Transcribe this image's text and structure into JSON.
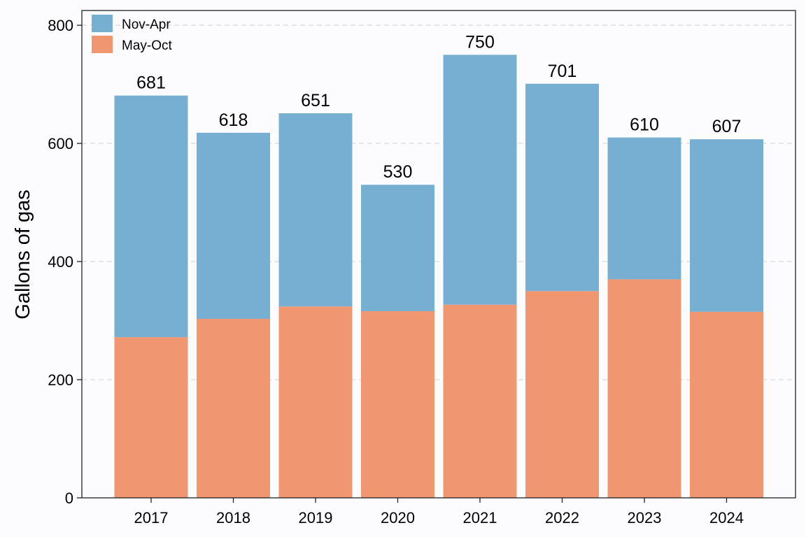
{
  "chart_data": {
    "type": "bar",
    "stacked": true,
    "categories": [
      "2017",
      "2018",
      "2019",
      "2020",
      "2021",
      "2022",
      "2023",
      "2024"
    ],
    "series": [
      {
        "name": "May-Oct",
        "color": "#f09670",
        "values": [
          272,
          303,
          324,
          316,
          327,
          350,
          370,
          315
        ]
      },
      {
        "name": "Nov-Apr",
        "color": "#77afd2",
        "values": [
          409,
          315,
          327,
          214,
          423,
          351,
          240,
          292
        ]
      }
    ],
    "totals": [
      "681",
      "618",
      "651",
      "530",
      "750",
      "701",
      "610",
      "607"
    ],
    "legend_order": [
      "Nov-Apr",
      "May-Oct"
    ],
    "legend_position": "top-left",
    "xlabel": "",
    "ylabel": "Gallons of gas",
    "ylim": [
      0,
      825
    ],
    "yticks": [
      0,
      200,
      400,
      600,
      800
    ],
    "grid": "horizontal-dashed",
    "colors": {
      "background": "#fcfcff",
      "plot_background": "#fcfcff",
      "axis": "#222222",
      "grid": "#dcdcdc"
    }
  }
}
